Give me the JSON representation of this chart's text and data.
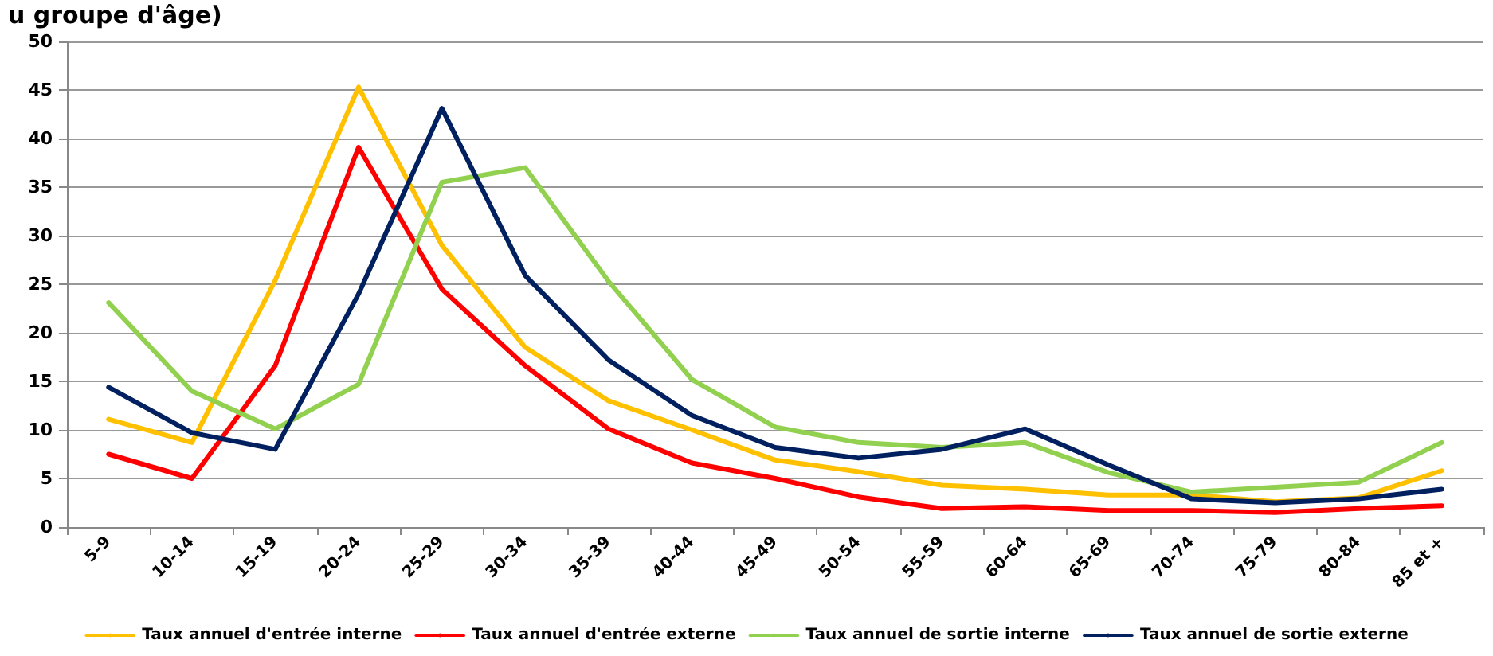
{
  "chart_data": {
    "type": "line",
    "title": "u groupe d'âge)",
    "categories": [
      "5-9",
      "10-14",
      "15-19",
      "20-24",
      "25-29",
      "30-34",
      "35-39",
      "40-44",
      "45-49",
      "50-54",
      "55-59",
      "60-64",
      "65-69",
      "70-74",
      "75-79",
      "80-84",
      "85 et +"
    ],
    "series": [
      {
        "name": "Taux annuel d'entrée interne",
        "color": "#ffc000",
        "values": [
          11.1,
          8.7,
          25.4,
          45.3,
          29,
          18.5,
          13,
          10,
          6.9,
          5.7,
          4.3,
          3.9,
          3.3,
          3.3,
          2.6,
          3.0,
          5.8
        ]
      },
      {
        "name": "Taux annuel d'entrée externe",
        "color": "#ff0000",
        "values": [
          7.5,
          5.0,
          16.6,
          39.1,
          24.5,
          16.6,
          10.1,
          6.6,
          5.0,
          3.1,
          1.9,
          2.1,
          1.7,
          1.7,
          1.5,
          1.9,
          2.2
        ]
      },
      {
        "name": "Taux annuel de sortie interne",
        "color": "#92d050",
        "values": [
          23.1,
          14,
          10.1,
          14.7,
          35.5,
          37.0,
          25.3,
          15.2,
          10.3,
          8.7,
          8.2,
          8.7,
          5.6,
          3.6,
          4.1,
          4.6,
          8.7
        ]
      },
      {
        "name": "Taux annuel de sortie externe",
        "color": "#002060",
        "values": [
          14.4,
          9.7,
          8.0,
          24,
          43.1,
          25.9,
          17.2,
          11.5,
          8.2,
          7.1,
          8.0,
          10.1,
          6.4,
          2.9,
          2.5,
          2.9,
          3.9
        ]
      }
    ],
    "ylim": [
      0,
      50
    ],
    "yticks": [
      0,
      5,
      10,
      15,
      20,
      25,
      30,
      35,
      40,
      45,
      50
    ],
    "grid": "y",
    "legend": "bottom",
    "marker": "none"
  }
}
